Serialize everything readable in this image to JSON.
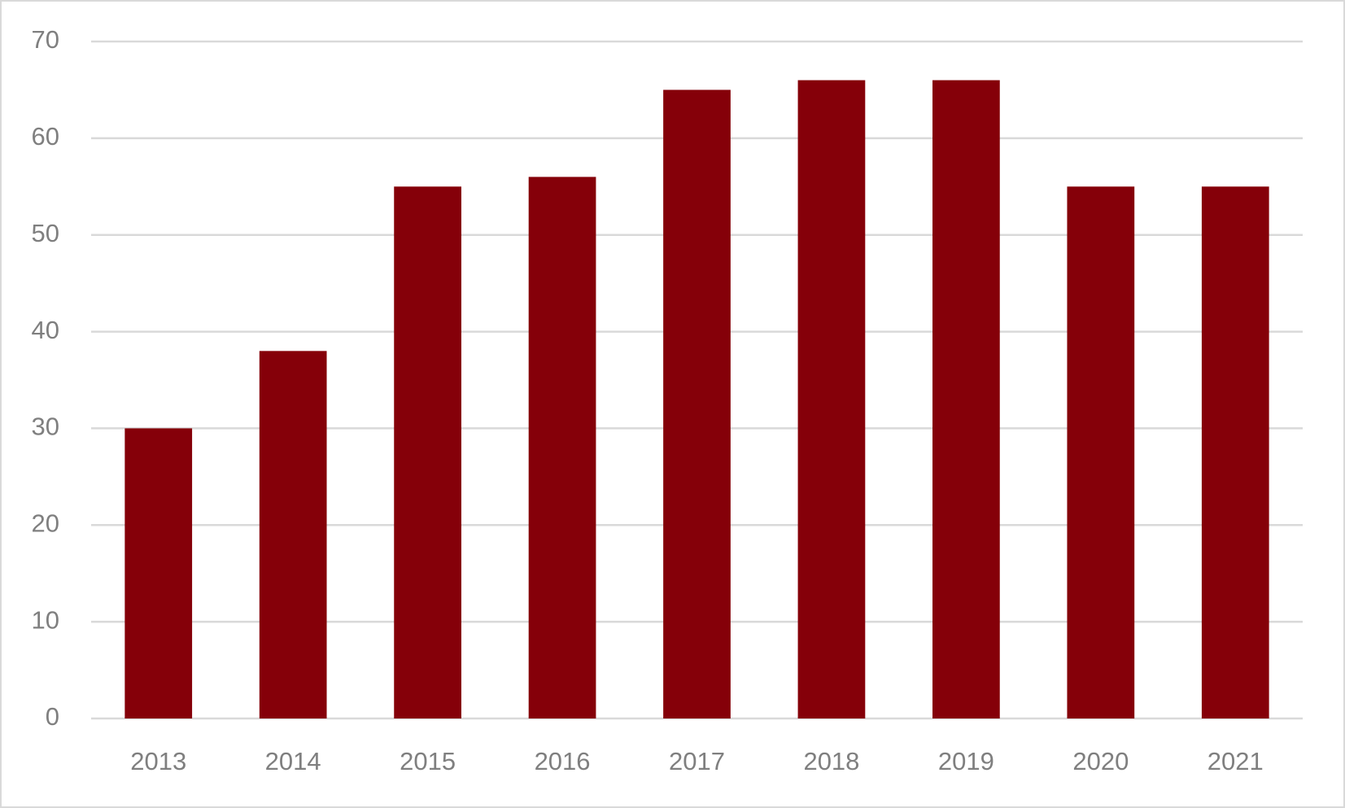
{
  "chart_data": {
    "type": "bar",
    "categories": [
      "2013",
      "2014",
      "2015",
      "2016",
      "2017",
      "2018",
      "2019",
      "2020",
      "2021"
    ],
    "values": [
      30,
      38,
      55,
      56,
      65,
      66,
      66,
      55,
      55
    ],
    "color": "#850009",
    "ylim": [
      0,
      70
    ],
    "yticks": [
      0,
      10,
      20,
      30,
      40,
      50,
      60,
      70
    ],
    "grid": true
  }
}
